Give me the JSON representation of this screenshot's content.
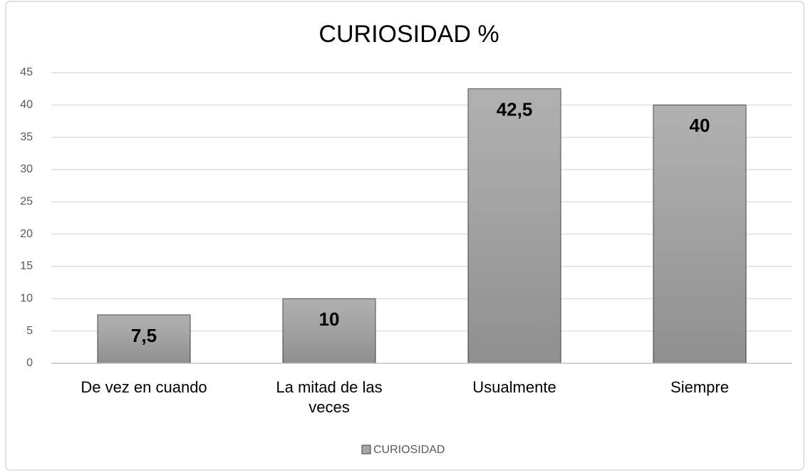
{
  "chart_data": {
    "type": "bar",
    "title": "CURIOSIDAD %",
    "categories": [
      "De vez en cuando",
      "La mitad de las veces",
      "Usualmente",
      "Siempre"
    ],
    "series": [
      {
        "name": "CURIOSIDAD",
        "color": "#a6a6a6",
        "values": [
          7.5,
          10,
          42.5,
          40
        ],
        "value_labels": [
          "7,5",
          "10",
          "42,5",
          "40"
        ]
      }
    ],
    "ylim": [
      0,
      45
    ],
    "yticks": [
      0,
      5,
      10,
      15,
      20,
      25,
      30,
      35,
      40,
      45
    ],
    "grid": true,
    "legend": "bottom"
  }
}
